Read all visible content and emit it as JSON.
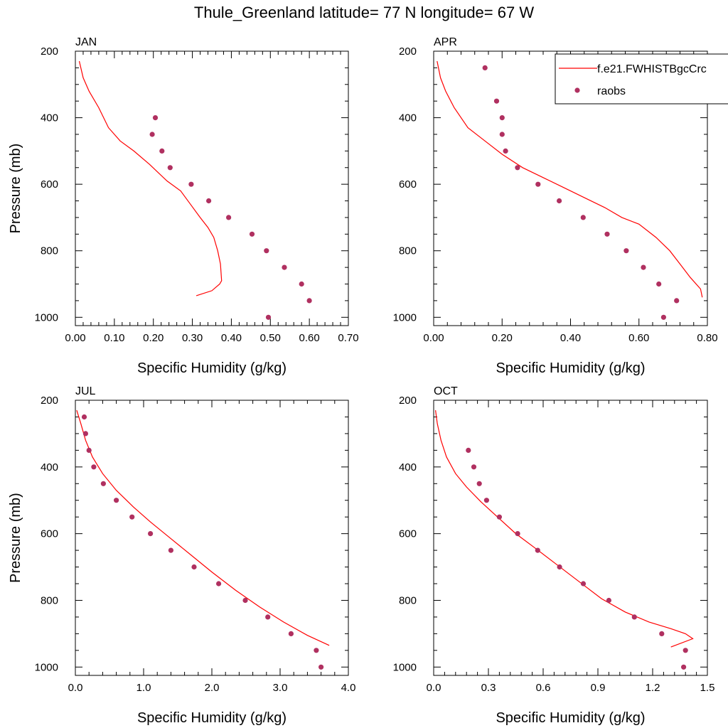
{
  "title": "Thule_Greenland  latitude= 77 N longitude= 67 W",
  "legend": {
    "model_label": "f.e21.FWHISTBgcCrc",
    "obs_label": "raobs",
    "model_color": "#ff0000",
    "obs_color": "#b03060"
  },
  "chart_data": [
    {
      "type": "line",
      "panel_label": "JAN",
      "xlabel": "Specific Humidity (g/kg)",
      "ylabel": "Pressure (mb)",
      "xlim": [
        0,
        0.7
      ],
      "ylim": [
        200,
        1025
      ],
      "y_reversed": true,
      "xticks": [
        "0.00",
        "0.10",
        "0.20",
        "0.30",
        "0.40",
        "0.50",
        "0.60",
        "0.70"
      ],
      "xtick_values": [
        0,
        0.1,
        0.2,
        0.3,
        0.4,
        0.5,
        0.6,
        0.7
      ],
      "yticks": [
        "200",
        "400",
        "600",
        "800",
        "1000"
      ],
      "ytick_values": [
        200,
        400,
        600,
        800,
        1000
      ],
      "series": [
        {
          "name": "f.e21.FWHISTBgcCrc",
          "kind": "line",
          "x": [
            0.01,
            0.02,
            0.035,
            0.06,
            0.085,
            0.115,
            0.15,
            0.19,
            0.235,
            0.27,
            0.295,
            0.32,
            0.34,
            0.355,
            0.365,
            0.372,
            0.375,
            0.37,
            0.35,
            0.31
          ],
          "y": [
            230,
            280,
            320,
            370,
            430,
            470,
            500,
            540,
            590,
            620,
            660,
            700,
            730,
            760,
            800,
            840,
            890,
            900,
            920,
            935
          ]
        },
        {
          "name": "raobs",
          "kind": "scatter",
          "x": [
            0.205,
            0.197,
            0.222,
            0.243,
            0.297,
            0.342,
            0.393,
            0.453,
            0.49,
            0.536,
            0.58,
            0.6,
            0.495
          ],
          "y": [
            400,
            450,
            500,
            550,
            600,
            650,
            700,
            750,
            800,
            850,
            900,
            950,
            1000
          ]
        }
      ]
    },
    {
      "type": "line",
      "panel_label": "APR",
      "xlabel": "Specific Humidity (g/kg)",
      "ylabel": "",
      "xlim": [
        0,
        0.8
      ],
      "ylim": [
        200,
        1025
      ],
      "y_reversed": true,
      "xticks": [
        "0.00",
        "0.20",
        "0.40",
        "0.60",
        "0.80"
      ],
      "xtick_values": [
        0,
        0.2,
        0.4,
        0.6,
        0.8
      ],
      "yticks": [
        "200",
        "400",
        "600",
        "800",
        "1000"
      ],
      "ytick_values": [
        200,
        400,
        600,
        800,
        1000
      ],
      "series": [
        {
          "name": "f.e21.FWHISTBgcCrc",
          "kind": "line",
          "x": [
            0.01,
            0.02,
            0.035,
            0.06,
            0.1,
            0.15,
            0.2,
            0.26,
            0.32,
            0.38,
            0.44,
            0.5,
            0.55,
            0.6,
            0.65,
            0.69,
            0.72,
            0.75,
            0.78,
            0.785
          ],
          "y": [
            230,
            280,
            320,
            370,
            430,
            470,
            510,
            550,
            580,
            610,
            640,
            670,
            700,
            720,
            760,
            800,
            840,
            880,
            915,
            940
          ]
        },
        {
          "name": "raobs",
          "kind": "scatter",
          "x": [
            0.15,
            0.184,
            0.2,
            0.2,
            0.21,
            0.245,
            0.305,
            0.367,
            0.437,
            0.507,
            0.563,
            0.613,
            0.658,
            0.71,
            0.672
          ],
          "y": [
            250,
            350,
            400,
            450,
            500,
            550,
            600,
            650,
            700,
            750,
            800,
            850,
            900,
            950,
            1000
          ]
        }
      ]
    },
    {
      "type": "line",
      "panel_label": "JUL",
      "xlabel": "Specific Humidity (g/kg)",
      "ylabel": "Pressure (mb)",
      "xlim": [
        0,
        4.0
      ],
      "ylim": [
        200,
        1025
      ],
      "y_reversed": true,
      "xticks": [
        "0.0",
        "1.0",
        "2.0",
        "3.0",
        "4.0"
      ],
      "xtick_values": [
        0,
        1,
        2,
        3,
        4
      ],
      "yticks": [
        "200",
        "400",
        "600",
        "800",
        "1000"
      ],
      "ytick_values": [
        200,
        400,
        600,
        800,
        1000
      ],
      "series": [
        {
          "name": "f.e21.FWHISTBgcCrc",
          "kind": "line",
          "x": [
            0.02,
            0.08,
            0.15,
            0.25,
            0.4,
            0.6,
            0.85,
            1.1,
            1.4,
            1.7,
            2.0,
            2.35,
            2.7,
            3.05,
            3.4,
            3.72
          ],
          "y": [
            230,
            270,
            320,
            370,
            420,
            470,
            520,
            565,
            615,
            665,
            715,
            770,
            820,
            865,
            905,
            935
          ]
        },
        {
          "name": "raobs",
          "kind": "scatter",
          "x": [
            0.13,
            0.15,
            0.2,
            0.27,
            0.41,
            0.6,
            0.83,
            1.1,
            1.4,
            1.74,
            2.1,
            2.49,
            2.82,
            3.16,
            3.53,
            3.6
          ],
          "y": [
            250,
            300,
            350,
            400,
            450,
            500,
            550,
            600,
            650,
            700,
            750,
            800,
            850,
            900,
            950,
            1000
          ]
        }
      ]
    },
    {
      "type": "line",
      "panel_label": "OCT",
      "xlabel": "Specific Humidity (g/kg)",
      "ylabel": "",
      "xlim": [
        0,
        1.5
      ],
      "ylim": [
        200,
        1025
      ],
      "y_reversed": true,
      "xticks": [
        "0.0",
        "0.3",
        "0.6",
        "0.9",
        "1.2",
        "1.5"
      ],
      "xtick_values": [
        0,
        0.3,
        0.6,
        0.9,
        1.2,
        1.5
      ],
      "yticks": [
        "200",
        "400",
        "600",
        "800",
        "1000"
      ],
      "ytick_values": [
        200,
        400,
        600,
        800,
        1000
      ],
      "series": [
        {
          "name": "f.e21.FWHISTBgcCrc",
          "kind": "line",
          "x": [
            0.01,
            0.02,
            0.04,
            0.07,
            0.12,
            0.18,
            0.26,
            0.35,
            0.45,
            0.56,
            0.68,
            0.8,
            0.92,
            1.05,
            1.18,
            1.3,
            1.38,
            1.42,
            1.3
          ],
          "y": [
            230,
            270,
            320,
            370,
            420,
            460,
            505,
            550,
            600,
            645,
            695,
            745,
            795,
            835,
            865,
            885,
            900,
            915,
            940
          ]
        },
        {
          "name": "raobs",
          "kind": "scatter",
          "x": [
            0.19,
            0.22,
            0.25,
            0.29,
            0.36,
            0.46,
            0.57,
            0.69,
            0.82,
            0.96,
            1.1,
            1.25,
            1.38,
            1.37
          ],
          "y": [
            350,
            400,
            450,
            500,
            550,
            600,
            650,
            700,
            750,
            800,
            850,
            900,
            950,
            1000
          ]
        }
      ]
    }
  ]
}
